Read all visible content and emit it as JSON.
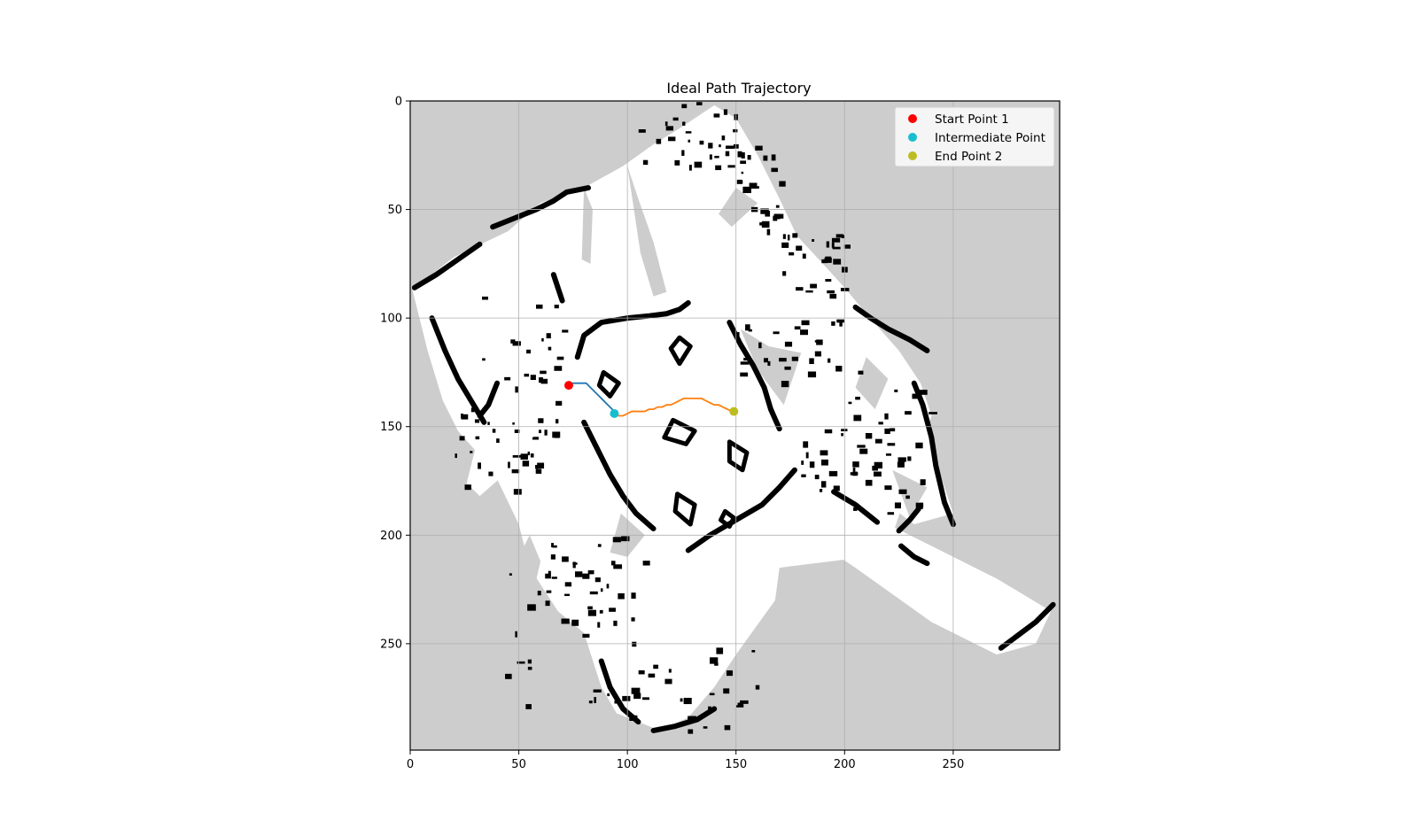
{
  "chart_data": {
    "type": "scatter",
    "title": "Ideal Path Trajectory",
    "xlabel": "",
    "ylabel": "",
    "xlim": [
      0,
      299
    ],
    "ylim": [
      299,
      0
    ],
    "y_inverted": true,
    "grid": true,
    "xticks": [
      0,
      50,
      100,
      150,
      200,
      250
    ],
    "yticks": [
      0,
      50,
      100,
      150,
      200,
      250
    ],
    "background": "occupancy grid map (gray = unknown, white = free, black = occupied)",
    "map_colors": {
      "unknown": "#cdcdcd",
      "free": "#ffffff",
      "occupied": "#000000"
    },
    "legend_position": "upper right",
    "legend": [
      {
        "label": "Start Point 1",
        "color": "#ff0000"
      },
      {
        "label": "Intermediate Point",
        "color": "#17becf"
      },
      {
        "label": "End Point 2",
        "color": "#bcbd22"
      }
    ],
    "points": [
      {
        "name": "Start Point 1",
        "x": 73,
        "y": 131,
        "color": "#ff0000"
      },
      {
        "name": "Intermediate Point",
        "x": 94,
        "y": 144,
        "color": "#17becf"
      },
      {
        "name": "End Point 2",
        "x": 149,
        "y": 143,
        "color": "#bcbd22"
      }
    ],
    "series": [
      {
        "color": "#1f77b4",
        "x": [
          73,
          75,
          77,
          79,
          81,
          83,
          85,
          87,
          89,
          91,
          93,
          94
        ],
        "y": [
          131,
          130,
          130,
          130,
          130,
          132,
          134,
          136,
          138,
          140,
          142,
          144
        ]
      },
      {
        "color": "#ff7f0e",
        "x": [
          94,
          96,
          98,
          100,
          102,
          104,
          106,
          108,
          110,
          112,
          114,
          116,
          118,
          120,
          122,
          124,
          126,
          128,
          130,
          132,
          134,
          136,
          138,
          140,
          142,
          144,
          146,
          148,
          149
        ],
        "y": [
          144,
          145,
          145,
          144,
          143,
          143,
          143,
          143,
          142,
          142,
          141,
          141,
          140,
          140,
          139,
          138,
          137,
          137,
          137,
          137,
          137,
          138,
          139,
          140,
          140,
          141,
          142,
          143,
          143
        ]
      }
    ]
  }
}
